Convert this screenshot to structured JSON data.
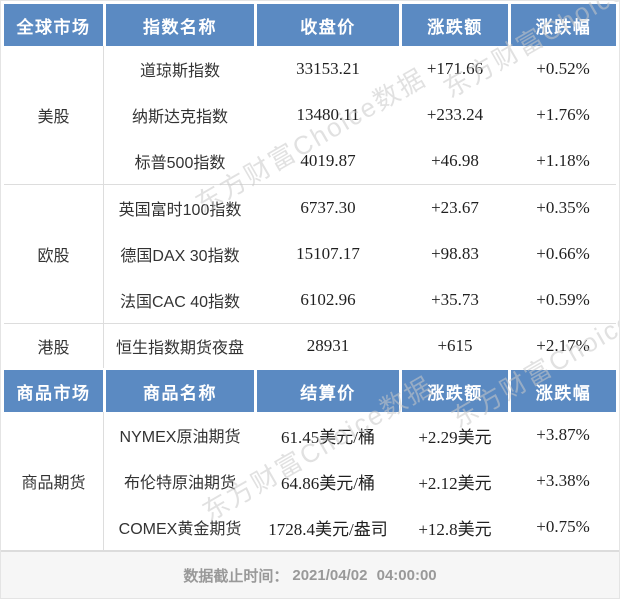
{
  "chart_data": [
    {
      "type": "table",
      "columns": [
        "全球市场",
        "指数名称",
        "收盘价",
        "涨跌额",
        "涨跌幅"
      ],
      "sections": [
        {
          "market": "美股",
          "rows": [
            [
              "道琼斯指数",
              "33153.21",
              "+171.66",
              "+0.52%"
            ],
            [
              "纳斯达克指数",
              "13480.11",
              "+233.24",
              "+1.76%"
            ],
            [
              "标普500指数",
              "4019.87",
              "+46.98",
              "+1.18%"
            ]
          ]
        },
        {
          "market": "欧股",
          "rows": [
            [
              "英国富时100指数",
              "6737.30",
              "+23.67",
              "+0.35%"
            ],
            [
              "德国DAX 30指数",
              "15107.17",
              "+98.83",
              "+0.66%"
            ],
            [
              "法国CAC 40指数",
              "6102.96",
              "+35.73",
              "+0.59%"
            ]
          ]
        },
        {
          "market": "港股",
          "rows": [
            [
              "恒生指数期货夜盘",
              "28931",
              "+615",
              "+2.17%"
            ]
          ]
        }
      ]
    },
    {
      "type": "table",
      "columns": [
        "商品市场",
        "商品名称",
        "结算价",
        "涨跌额",
        "涨跌幅"
      ],
      "sections": [
        {
          "market": "商品期货",
          "rows": [
            [
              "NYMEX原油期货",
              "61.45美元/桶",
              "+2.29美元",
              "+3.87%"
            ],
            [
              "布伦特原油期货",
              "64.86美元/桶",
              "+2.12美元",
              "+3.38%"
            ],
            [
              "COMEX黄金期货",
              "1728.4美元/盎司",
              "+12.8美元",
              "+0.75%"
            ]
          ]
        }
      ]
    }
  ],
  "footer": {
    "label": "数据截止时间：",
    "value": "2021/04/02 04:00:00"
  },
  "watermark": {
    "text": "东方财富Choice数据"
  },
  "colors": {
    "header_bg": "#5B8AC2",
    "header_text": "#FFFFFF",
    "body_text": "#333333",
    "number_text": "#1F1F1F",
    "divider": "#DDDDDD",
    "footer_bg": "#F6F6F6",
    "footer_text": "#999999",
    "watermark": "#C9C9C9",
    "frame_border": "#E4E4E4"
  }
}
